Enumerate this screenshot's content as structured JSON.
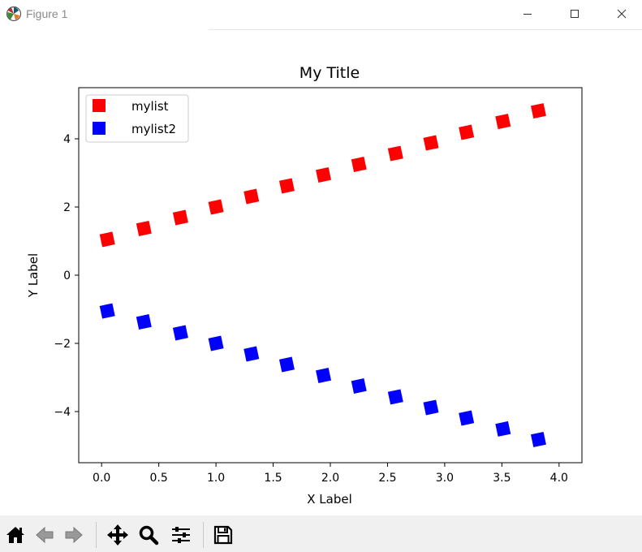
{
  "window": {
    "title": "Figure 1",
    "icons": [
      "matplotlib-icon",
      "minimize-icon",
      "maximize-icon",
      "close-icon"
    ]
  },
  "toolbar": {
    "buttons": [
      "home-icon",
      "back-icon",
      "forward-icon",
      "pan-icon",
      "zoom-icon",
      "configure-subplots-icon",
      "save-icon"
    ]
  },
  "chart_data": {
    "type": "scatter",
    "title": "My Title",
    "xlabel": "X Label",
    "ylabel": "Y Label",
    "xlim": [
      -0.2,
      4.2
    ],
    "ylim": [
      -5.5,
      5.5
    ],
    "xticks": [
      "0.0",
      "0.5",
      "1.0",
      "1.5",
      "2.0",
      "2.5",
      "3.0",
      "3.5",
      "4.0"
    ],
    "yticks": [
      "−4",
      "−2",
      "0",
      "2",
      "4"
    ],
    "xtick_values": [
      0,
      0.5,
      1,
      1.5,
      2,
      2.5,
      3,
      3.5,
      4
    ],
    "ytick_values": [
      -4,
      -2,
      0,
      2,
      4
    ],
    "grid": false,
    "legend_position": "top-left",
    "marker": "square",
    "series": [
      {
        "name": "mylist",
        "color": "#ff0000",
        "x": [
          0.05,
          0.37,
          0.69,
          1.0,
          1.31,
          1.62,
          1.94,
          2.25,
          2.57,
          2.88,
          3.19,
          3.51,
          3.82
        ],
        "y": [
          1.05,
          1.37,
          1.69,
          2.0,
          2.31,
          2.62,
          2.94,
          3.25,
          3.57,
          3.88,
          4.19,
          4.51,
          4.82
        ]
      },
      {
        "name": "mylist2",
        "color": "#0000ff",
        "x": [
          0.05,
          0.37,
          0.69,
          1.0,
          1.31,
          1.62,
          1.94,
          2.25,
          2.57,
          2.88,
          3.19,
          3.51,
          3.82
        ],
        "y": [
          -1.05,
          -1.37,
          -1.69,
          -2.0,
          -2.31,
          -2.62,
          -2.94,
          -3.25,
          -3.57,
          -3.88,
          -4.19,
          -4.51,
          -4.82
        ]
      }
    ]
  }
}
